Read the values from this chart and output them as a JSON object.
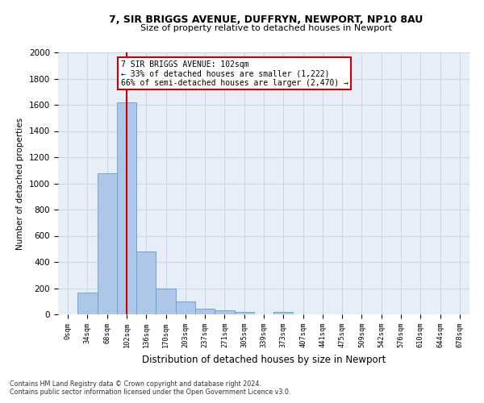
{
  "title1": "7, SIR BRIGGS AVENUE, DUFFRYN, NEWPORT, NP10 8AU",
  "title2": "Size of property relative to detached houses in Newport",
  "xlabel": "Distribution of detached houses by size in Newport",
  "ylabel": "Number of detached properties",
  "bar_labels": [
    "0sqm",
    "34sqm",
    "68sqm",
    "102sqm",
    "136sqm",
    "170sqm",
    "203sqm",
    "237sqm",
    "271sqm",
    "305sqm",
    "339sqm",
    "373sqm",
    "407sqm",
    "441sqm",
    "475sqm",
    "509sqm",
    "542sqm",
    "576sqm",
    "610sqm",
    "644sqm",
    "678sqm"
  ],
  "bar_values": [
    0,
    165,
    1080,
    1620,
    480,
    200,
    100,
    45,
    30,
    20,
    0,
    20,
    0,
    0,
    0,
    0,
    0,
    0,
    0,
    0,
    0
  ],
  "bar_color": "#aec6e8",
  "bar_edge_color": "#5a9fd4",
  "red_line_index": 3,
  "red_line_color": "#cc0000",
  "annotation_line1": "7 SIR BRIGGS AVENUE: 102sqm",
  "annotation_line2": "← 33% of detached houses are smaller (1,222)",
  "annotation_line3": "66% of semi-detached houses are larger (2,470) →",
  "annotation_box_color": "#cc0000",
  "ylim": [
    0,
    2000
  ],
  "yticks": [
    0,
    200,
    400,
    600,
    800,
    1000,
    1200,
    1400,
    1600,
    1800,
    2000
  ],
  "footnote1": "Contains HM Land Registry data © Crown copyright and database right 2024.",
  "footnote2": "Contains public sector information licensed under the Open Government Licence v3.0.",
  "bg_color": "#ffffff",
  "plot_bg_color": "#e8eef8",
  "grid_color": "#c8d4e8"
}
